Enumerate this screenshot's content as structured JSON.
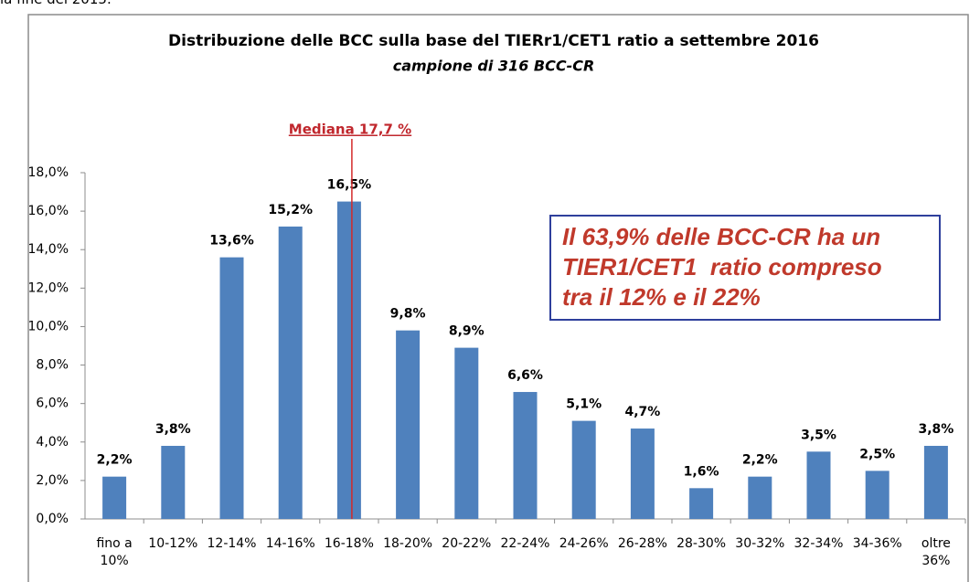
{
  "page_text": "la fine del 2015.",
  "chart_data": {
    "type": "bar",
    "title": "Distribuzione delle BCC sulla base del TIERr1/CET1 ratio a settembre 2016",
    "subtitle": "campione di 316 BCC-CR",
    "median_label": "Mediana 17,7 %",
    "annotation": [
      "Il 63,9% delle BCC-CR ha un",
      "TIER1/CET1  ratio compreso",
      "tra il 12% e il 22%"
    ],
    "categories": [
      "fino a 10%",
      "10-12%",
      "12-14%",
      "14-16%",
      "16-18%",
      "18-20%",
      "20-22%",
      "22-24%",
      "24-26%",
      "26-28%",
      "28-30%",
      "30-32%",
      "32-34%",
      "34-36%",
      "oltre 36%"
    ],
    "values": [
      2.2,
      3.8,
      13.6,
      15.2,
      16.5,
      9.8,
      8.9,
      6.6,
      5.1,
      4.7,
      1.6,
      2.2,
      3.5,
      2.5,
      3.8
    ],
    "value_labels": [
      "2,2%",
      "3,8%",
      "13,6%",
      "15,2%",
      "16,5%",
      "9,8%",
      "8,9%",
      "6,6%",
      "5,1%",
      "4,7%",
      "1,6%",
      "2,2%",
      "3,5%",
      "2,5%",
      "3,8%"
    ],
    "color": "#4f81bd",
    "ylim": [
      0,
      18
    ],
    "yticks": [
      {
        "value": 0,
        "label": "0,0%"
      },
      {
        "value": 2,
        "label": "2,0%"
      },
      {
        "value": 4,
        "label": "4,0%"
      },
      {
        "value": 6,
        "label": "6,0%"
      },
      {
        "value": 8,
        "label": "8,0%"
      },
      {
        "value": 10,
        "label": "10,0%"
      },
      {
        "value": 12,
        "label": "12,0%"
      },
      {
        "value": 14,
        "label": "14,0%"
      },
      {
        "value": 16,
        "label": "16,0%"
      },
      {
        "value": 18,
        "label": "18,0%"
      }
    ],
    "grid": false
  }
}
